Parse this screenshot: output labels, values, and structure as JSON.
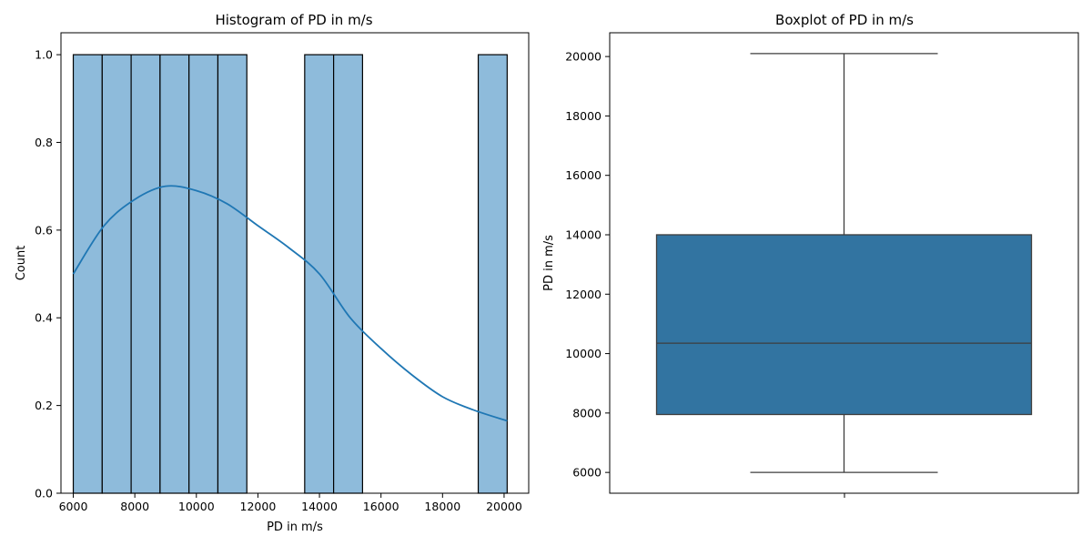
{
  "chart_data": [
    {
      "type": "bar",
      "subtype": "histogram",
      "title": "Histogram of PD in m/s",
      "xlabel": "PD in m/s",
      "ylabel": "Count",
      "xlim": [
        5600,
        20800
      ],
      "ylim": [
        0,
        1.05
      ],
      "xticks": [
        6000,
        8000,
        10000,
        12000,
        14000,
        16000,
        18000,
        20000
      ],
      "yticks": [
        0.0,
        0.2,
        0.4,
        0.6,
        0.8,
        1.0
      ],
      "bins": [
        {
          "x0": 6000,
          "x1": 6940,
          "count": 1
        },
        {
          "x0": 6940,
          "x1": 7880,
          "count": 1
        },
        {
          "x0": 7880,
          "x1": 8820,
          "count": 1
        },
        {
          "x0": 8820,
          "x1": 9760,
          "count": 1
        },
        {
          "x0": 9760,
          "x1": 10700,
          "count": 1
        },
        {
          "x0": 10700,
          "x1": 11640,
          "count": 1
        },
        {
          "x0": 11640,
          "x1": 12580,
          "count": 0
        },
        {
          "x0": 12580,
          "x1": 13520,
          "count": 0
        },
        {
          "x0": 13520,
          "x1": 14460,
          "count": 1
        },
        {
          "x0": 14460,
          "x1": 15400,
          "count": 1
        },
        {
          "x0": 15400,
          "x1": 16340,
          "count": 0
        },
        {
          "x0": 16340,
          "x1": 17280,
          "count": 0
        },
        {
          "x0": 17280,
          "x1": 18220,
          "count": 0
        },
        {
          "x0": 18220,
          "x1": 19160,
          "count": 0
        },
        {
          "x0": 19160,
          "x1": 20100,
          "count": 1
        }
      ],
      "kde": {
        "x": [
          6000,
          7000,
          8000,
          9000,
          10000,
          11000,
          12000,
          13000,
          14000,
          15000,
          16000,
          17000,
          18000,
          19000,
          20100
        ],
        "y": [
          0.5,
          0.61,
          0.67,
          0.7,
          0.69,
          0.66,
          0.61,
          0.56,
          0.5,
          0.4,
          0.33,
          0.27,
          0.22,
          0.19,
          0.165
        ]
      },
      "bar_color": "#8ebbdb",
      "edge_color": "#000000",
      "line_color": "#1f77b4",
      "grid": false,
      "legend": "none"
    },
    {
      "type": "box",
      "title": "Boxplot of PD in m/s",
      "ylabel": "PD in m/s",
      "xlabel": "",
      "ylim": [
        5300,
        20800
      ],
      "yticks": [
        6000,
        8000,
        10000,
        12000,
        14000,
        16000,
        18000,
        20000
      ],
      "whisker_low": 6000,
      "q1": 7950,
      "median": 10350,
      "q3": 14000,
      "whisker_high": 20100,
      "box_color": "#3274a1",
      "line_color": "#3d3d3d",
      "grid": false,
      "legend": "none"
    }
  ]
}
